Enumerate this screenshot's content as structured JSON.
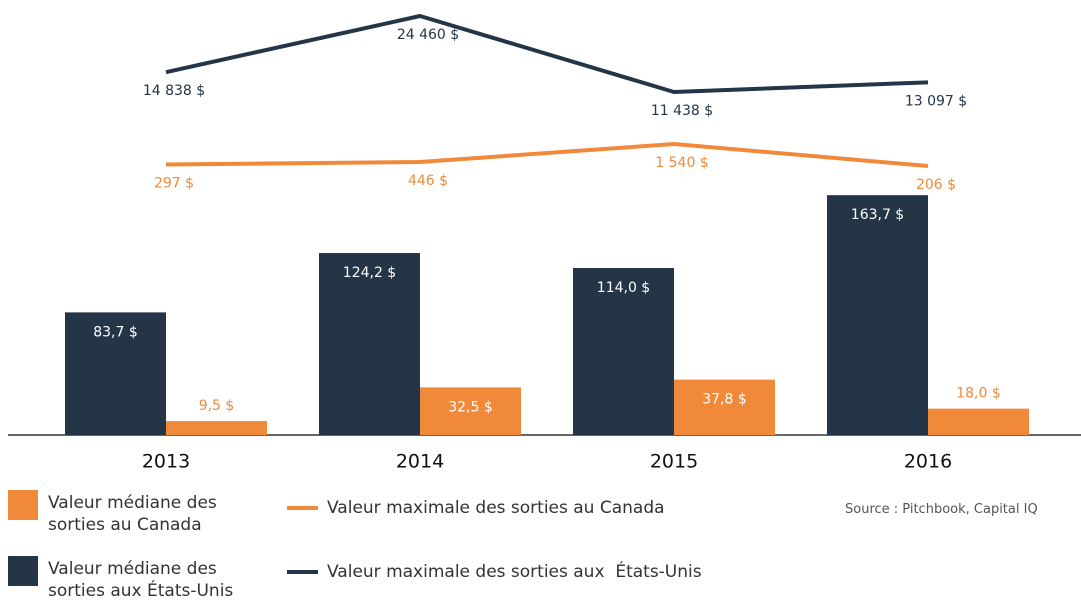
{
  "chart_data": {
    "type": "bar",
    "categories": [
      "2013",
      "2014",
      "2015",
      "2016"
    ],
    "series": [
      {
        "name": "Valeur médiane des sorties aux États-Unis",
        "color": "#253548",
        "type": "bar",
        "values": [
          83.7,
          124.2,
          114.0,
          163.7
        ],
        "value_labels": [
          "83,7 $",
          "124,2 $",
          "114,0 $",
          "163,7 $"
        ]
      },
      {
        "name": "Valeur médiane des sorties au Canada",
        "color": "#f08a3a",
        "type": "bar",
        "values": [
          9.5,
          32.5,
          37.8,
          18.0
        ],
        "value_labels": [
          "9,5 $",
          "32,5 $",
          "37,8 $",
          "18,0 $"
        ]
      },
      {
        "name": "Valeur maximale des sorties aux  États-Unis",
        "color": "#253548",
        "type": "line",
        "values": [
          14838,
          24460,
          11438,
          13097
        ],
        "value_labels": [
          "14 838 $",
          "24 460 $",
          "11 438 $",
          "13 097 $"
        ]
      },
      {
        "name": "Valeur maximale des sorties au Canada",
        "color": "#f08a3a",
        "type": "line",
        "values": [
          297,
          446,
          1540,
          206
        ],
        "value_labels": [
          "297 $",
          "446 $",
          "1 540 $",
          "206 $"
        ]
      }
    ],
    "source": "Source : Pitchbook, Capital IQ"
  }
}
